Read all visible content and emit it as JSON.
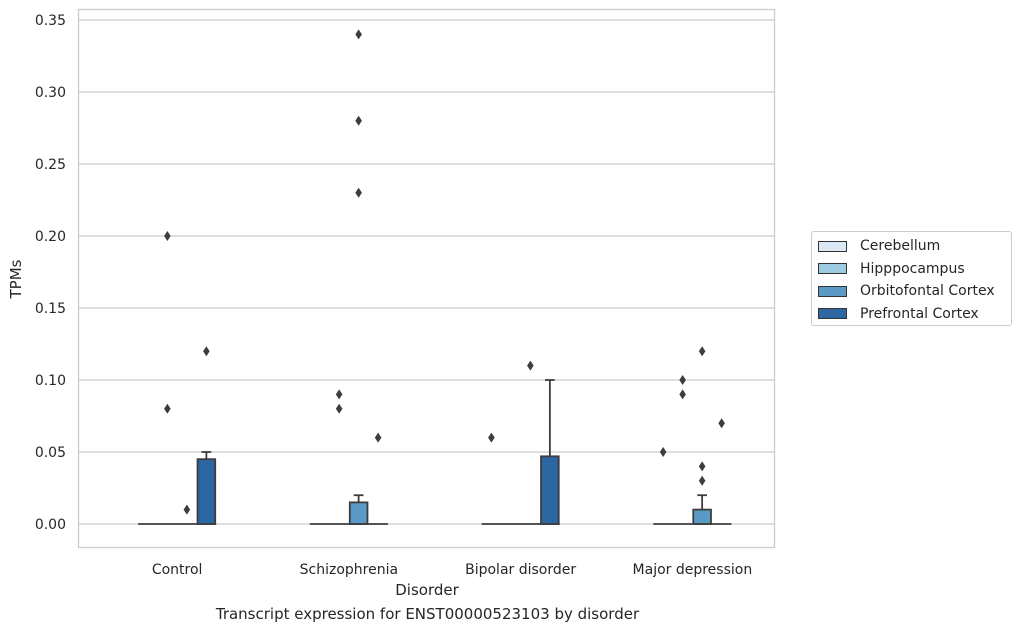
{
  "chart_data": {
    "type": "box",
    "caption": "Transcript expression for ENST00000523103 by disorder",
    "xlabel": "Disorder",
    "ylabel": "TPMs",
    "ylim": [
      -0.017,
      0.358
    ],
    "yticks": [
      "0.00",
      "0.05",
      "0.10",
      "0.15",
      "0.20",
      "0.25",
      "0.30",
      "0.35"
    ],
    "ytick_values": [
      0,
      0.05,
      0.1,
      0.15,
      0.2,
      0.25,
      0.3,
      0.35
    ],
    "grid": "horizontal",
    "categories": [
      "Control",
      "Schizophrenia",
      "Bipolar disorder",
      "Major depression"
    ],
    "legend_position": "right",
    "series": [
      {
        "name": "Cerebellum",
        "color": "#dbe9f6",
        "boxes": [
          {
            "q1": 0,
            "median": 0,
            "q3": 0,
            "whisker_low": 0,
            "whisker_high": 0,
            "outliers": []
          },
          {
            "q1": 0,
            "median": 0,
            "q3": 0,
            "whisker_low": 0,
            "whisker_high": 0,
            "outliers": []
          },
          {
            "q1": 0,
            "median": 0,
            "q3": 0,
            "whisker_low": 0,
            "whisker_high": 0,
            "outliers": [
              0.06
            ]
          },
          {
            "q1": 0,
            "median": 0,
            "q3": 0,
            "whisker_low": 0,
            "whisker_high": 0,
            "outliers": [
              0.05
            ]
          }
        ]
      },
      {
        "name": "Hipppocampus",
        "color": "#9ecae1",
        "boxes": [
          {
            "q1": 0,
            "median": 0,
            "q3": 0,
            "whisker_low": 0,
            "whisker_high": 0,
            "outliers": [
              0.08,
              0.2
            ]
          },
          {
            "q1": 0,
            "median": 0,
            "q3": 0,
            "whisker_low": 0,
            "whisker_high": 0,
            "outliers": [
              0.08,
              0.09
            ]
          },
          {
            "q1": 0,
            "median": 0,
            "q3": 0,
            "whisker_low": 0,
            "whisker_high": 0,
            "outliers": []
          },
          {
            "q1": 0,
            "median": 0,
            "q3": 0,
            "whisker_low": 0,
            "whisker_high": 0,
            "outliers": [
              0.09,
              0.1
            ]
          }
        ]
      },
      {
        "name": "Orbitofontal Cortex",
        "color": "#5b9ac6",
        "boxes": [
          {
            "q1": 0,
            "median": 0,
            "q3": 0,
            "whisker_low": 0,
            "whisker_high": 0,
            "outliers": [
              0.01
            ]
          },
          {
            "q1": 0,
            "median": 0,
            "q3": 0.015,
            "whisker_low": 0,
            "whisker_high": 0.02,
            "outliers": [
              0.23,
              0.28,
              0.34
            ]
          },
          {
            "q1": 0,
            "median": 0,
            "q3": 0,
            "whisker_low": 0,
            "whisker_high": 0,
            "outliers": [
              0.11
            ]
          },
          {
            "q1": 0,
            "median": 0,
            "q3": 0.01,
            "whisker_low": 0,
            "whisker_high": 0.02,
            "outliers": [
              0.03,
              0.04,
              0.12
            ]
          }
        ]
      },
      {
        "name": "Prefrontal Cortex",
        "color": "#2c66a3",
        "boxes": [
          {
            "q1": 0,
            "median": 0,
            "q3": 0.045,
            "whisker_low": 0,
            "whisker_high": 0.05,
            "outliers": [
              0.12
            ]
          },
          {
            "q1": 0,
            "median": 0,
            "q3": 0,
            "whisker_low": 0,
            "whisker_high": 0,
            "outliers": [
              0.06
            ]
          },
          {
            "q1": 0,
            "median": 0,
            "q3": 0.047,
            "whisker_low": 0,
            "whisker_high": 0.1,
            "outliers": []
          },
          {
            "q1": 0,
            "median": 0,
            "q3": 0,
            "whisker_low": 0,
            "whisker_high": 0,
            "outliers": [
              0.07
            ]
          }
        ]
      }
    ]
  }
}
